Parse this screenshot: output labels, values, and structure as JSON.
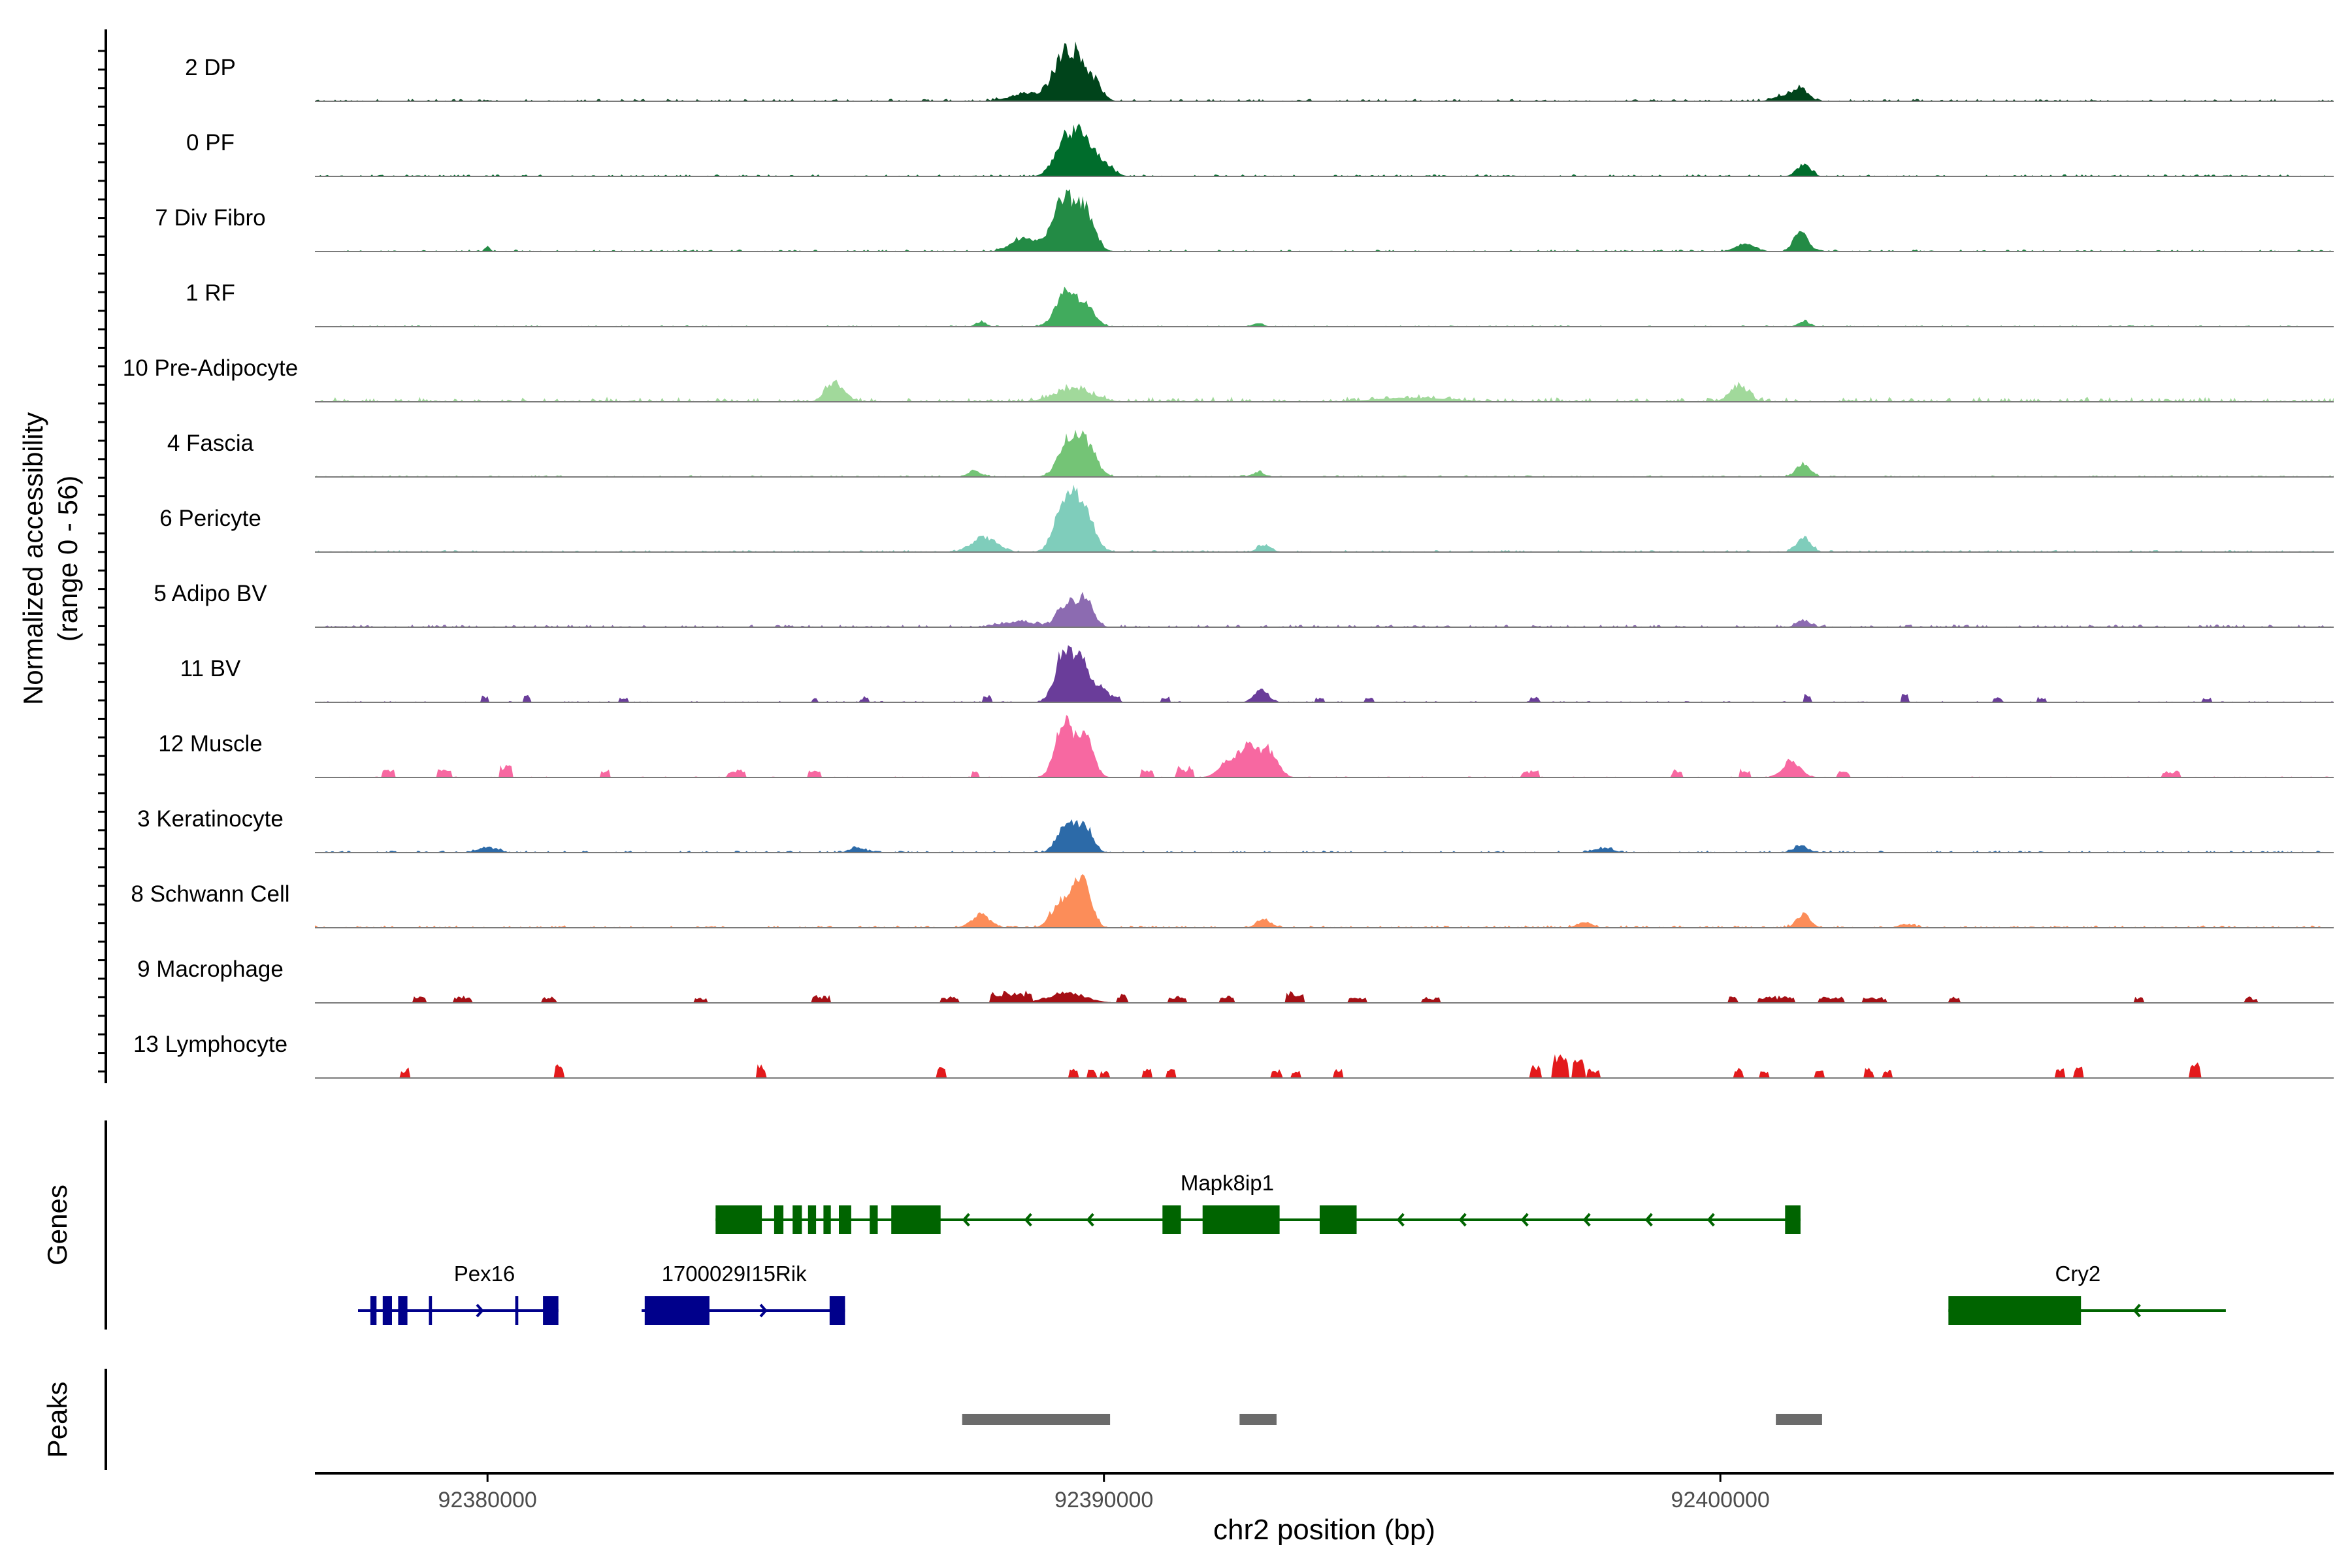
{
  "chart_data": {
    "type": "area",
    "title": "",
    "ylabel_line1": "Normalized accessibility",
    "ylabel_line2": "(range 0 - 56)",
    "y_range": [
      0,
      56
    ],
    "xlabel": "chr2 position (bp)",
    "xlim": [
      92377200,
      92409950
    ],
    "x_ticks": [
      92380000,
      92390000,
      92400000
    ],
    "x_tick_labels": [
      "92380000",
      "92390000",
      "92400000"
    ],
    "tracks": [
      {
        "name": "2 DP",
        "color": "#00441b",
        "peaks": [
          [
            92389350,
            0.62,
            170
          ],
          [
            92389600,
            0.45,
            140
          ],
          [
            92389850,
            0.25,
            130
          ],
          [
            92388800,
            0.12,
            300
          ],
          [
            92401300,
            0.2,
            120
          ],
          [
            92401000,
            0.08,
            150
          ]
        ],
        "blocks": [],
        "noise": 0.035
      },
      {
        "name": "0 PF",
        "color": "#006d2c",
        "peaks": [
          [
            92389400,
            0.62,
            180
          ],
          [
            92389700,
            0.45,
            140
          ],
          [
            92390000,
            0.18,
            150
          ],
          [
            92401350,
            0.18,
            110
          ]
        ],
        "blocks": [],
        "noise": 0.03
      },
      {
        "name": "7 Div Fibro",
        "color": "#238b45",
        "peaks": [
          [
            92389350,
            0.78,
            190
          ],
          [
            92389700,
            0.55,
            150
          ],
          [
            92388700,
            0.2,
            200
          ],
          [
            92401300,
            0.3,
            110
          ],
          [
            92400400,
            0.12,
            150
          ],
          [
            92380000,
            0.08,
            40
          ]
        ],
        "blocks": [],
        "noise": 0.03
      },
      {
        "name": "1 RF",
        "color": "#41ab5d",
        "peaks": [
          [
            92389400,
            0.55,
            170
          ],
          [
            92389750,
            0.25,
            130
          ],
          [
            92388000,
            0.08,
            80
          ],
          [
            92401350,
            0.08,
            90
          ],
          [
            92392500,
            0.05,
            90
          ]
        ],
        "blocks": [],
        "noise": 0.02
      },
      {
        "name": "10 Pre-Adipocyte",
        "color": "#a1d99b",
        "peaks": [
          [
            92385650,
            0.28,
            150
          ],
          [
            92389500,
            0.2,
            300
          ],
          [
            92400300,
            0.25,
            150
          ],
          [
            92395000,
            0.06,
            600
          ]
        ],
        "blocks": [],
        "noise": 0.07
      },
      {
        "name": "4 Fascia",
        "color": "#74c476",
        "peaks": [
          [
            92389450,
            0.58,
            170
          ],
          [
            92389750,
            0.42,
            140
          ],
          [
            92387900,
            0.1,
            100
          ],
          [
            92401350,
            0.2,
            110
          ],
          [
            92392500,
            0.07,
            100
          ]
        ],
        "blocks": [],
        "noise": 0.025
      },
      {
        "name": "6 Pericyte",
        "color": "#7fcdbb",
        "peaks": [
          [
            92389400,
            0.88,
            170
          ],
          [
            92389700,
            0.5,
            160
          ],
          [
            92388050,
            0.22,
            200
          ],
          [
            92401350,
            0.22,
            110
          ],
          [
            92392600,
            0.1,
            110
          ]
        ],
        "blocks": [],
        "noise": 0.03
      },
      {
        "name": "5 Adipo BV",
        "color": "#8c6bb1",
        "peaks": [
          [
            92389400,
            0.35,
            150
          ],
          [
            92389700,
            0.4,
            130
          ],
          [
            92388600,
            0.08,
            300
          ],
          [
            92401350,
            0.1,
            110
          ]
        ],
        "blocks": [],
        "noise": 0.04
      },
      {
        "name": "11 BV",
        "color": "#6a3d9a",
        "peaks": [
          [
            92389350,
            0.78,
            140
          ],
          [
            92389650,
            0.58,
            120
          ],
          [
            92389950,
            0.22,
            110
          ],
          [
            92392550,
            0.22,
            110
          ]
        ],
        "blocks": [
          [
            92379950,
            120,
            0.08
          ],
          [
            92380650,
            120,
            0.1
          ],
          [
            92382200,
            150,
            0.06
          ],
          [
            92385300,
            100,
            0.06
          ],
          [
            92386100,
            150,
            0.06
          ],
          [
            92388100,
            150,
            0.08
          ],
          [
            92390200,
            150,
            0.07
          ],
          [
            92391000,
            150,
            0.06
          ],
          [
            92393500,
            150,
            0.06
          ],
          [
            92394300,
            150,
            0.06
          ],
          [
            92397000,
            150,
            0.06
          ],
          [
            92401400,
            120,
            0.12
          ],
          [
            92403000,
            120,
            0.1
          ],
          [
            92404500,
            150,
            0.06
          ],
          [
            92405200,
            150,
            0.06
          ],
          [
            92407900,
            150,
            0.06
          ]
        ],
        "noise": 0.02
      },
      {
        "name": "12 Muscle",
        "color": "#f768a1",
        "peaks": [
          [
            92389350,
            0.82,
            140
          ],
          [
            92389700,
            0.62,
            130
          ],
          [
            92392350,
            0.48,
            150
          ],
          [
            92392700,
            0.4,
            130
          ],
          [
            92392000,
            0.22,
            150
          ],
          [
            92401150,
            0.25,
            140
          ]
        ],
        "blocks": [
          [
            92378400,
            200,
            0.1
          ],
          [
            92379300,
            250,
            0.12
          ],
          [
            92380300,
            200,
            0.18
          ],
          [
            92381900,
            150,
            0.1
          ],
          [
            92384050,
            300,
            0.1
          ],
          [
            92385300,
            200,
            0.08
          ],
          [
            92387900,
            120,
            0.08
          ],
          [
            92390700,
            200,
            0.1
          ],
          [
            92391300,
            300,
            0.12
          ],
          [
            92396900,
            300,
            0.08
          ],
          [
            92399300,
            200,
            0.08
          ],
          [
            92400400,
            200,
            0.08
          ],
          [
            92402000,
            200,
            0.08
          ],
          [
            92407300,
            300,
            0.07
          ]
        ],
        "noise": 0.015
      },
      {
        "name": "3 Keratinocyte",
        "color": "#2c6aa8",
        "peaks": [
          [
            92389400,
            0.48,
            140
          ],
          [
            92389700,
            0.38,
            120
          ],
          [
            92380000,
            0.08,
            150
          ],
          [
            92386000,
            0.07,
            120
          ],
          [
            92401300,
            0.1,
            120
          ],
          [
            92398100,
            0.07,
            150
          ]
        ],
        "blocks": [],
        "noise": 0.03
      },
      {
        "name": "8 Schwann Cell",
        "color": "#fc8d59",
        "peaks": [
          [
            92389650,
            0.85,
            130
          ],
          [
            92389300,
            0.4,
            150
          ],
          [
            92388000,
            0.2,
            150
          ],
          [
            92392600,
            0.12,
            120
          ],
          [
            92401350,
            0.2,
            110
          ],
          [
            92397800,
            0.08,
            120
          ],
          [
            92403000,
            0.06,
            100
          ]
        ],
        "blocks": [],
        "noise": 0.035
      },
      {
        "name": "9 Macrophage",
        "color": "#a50f15",
        "peaks": [
          [
            92389400,
            0.15,
            300
          ]
        ],
        "blocks": [
          [
            92378900,
            200,
            0.08
          ],
          [
            92379600,
            300,
            0.08
          ],
          [
            92381000,
            250,
            0.07
          ],
          [
            92383450,
            200,
            0.06
          ],
          [
            92385400,
            300,
            0.08
          ],
          [
            92387500,
            300,
            0.07
          ],
          [
            92388500,
            700,
            0.12
          ],
          [
            92390300,
            200,
            0.1
          ],
          [
            92391200,
            300,
            0.08
          ],
          [
            92392000,
            250,
            0.08
          ],
          [
            92393100,
            300,
            0.12
          ],
          [
            92394100,
            300,
            0.06
          ],
          [
            92395300,
            300,
            0.07
          ],
          [
            92400200,
            150,
            0.07
          ],
          [
            92400900,
            600,
            0.08
          ],
          [
            92401800,
            400,
            0.08
          ],
          [
            92402500,
            400,
            0.07
          ],
          [
            92403800,
            200,
            0.07
          ],
          [
            92406800,
            150,
            0.08
          ],
          [
            92408600,
            200,
            0.07
          ]
        ],
        "noise": 0.01
      },
      {
        "name": "13 Lymphocyte",
        "color": "#e31a1c",
        "peaks": [],
        "blocks": [
          [
            92378650,
            150,
            0.12
          ],
          [
            92381150,
            150,
            0.16
          ],
          [
            92384450,
            150,
            0.16
          ],
          [
            92387350,
            150,
            0.15
          ],
          [
            92389500,
            150,
            0.1
          ],
          [
            92389800,
            150,
            0.1
          ],
          [
            92390000,
            150,
            0.1
          ],
          [
            92390700,
            150,
            0.12
          ],
          [
            92391100,
            150,
            0.12
          ],
          [
            92392800,
            150,
            0.1
          ],
          [
            92393100,
            150,
            0.1
          ],
          [
            92393800,
            150,
            0.1
          ],
          [
            92397000,
            200,
            0.15
          ],
          [
            92397400,
            250,
            0.28
          ],
          [
            92397700,
            200,
            0.2
          ],
          [
            92397950,
            200,
            0.1
          ],
          [
            92400300,
            150,
            0.12
          ],
          [
            92400700,
            150,
            0.1
          ],
          [
            92401600,
            150,
            0.1
          ],
          [
            92402400,
            150,
            0.12
          ],
          [
            92402700,
            150,
            0.1
          ],
          [
            92405500,
            150,
            0.12
          ],
          [
            92405800,
            150,
            0.15
          ],
          [
            92407700,
            150,
            0.2
          ]
        ],
        "noise": 0.0
      }
    ],
    "genes_label": "Genes",
    "peaks_label": "Peaks",
    "genes": [
      {
        "name": "Mapk8ip1",
        "color": "#006400",
        "strand": "-",
        "row": 0,
        "start": 92383700,
        "end": 92401300,
        "exons": [
          [
            92383700,
            92384450
          ],
          [
            92384650,
            92384800
          ],
          [
            92384950,
            92385100
          ],
          [
            92385200,
            92385330
          ],
          [
            92385450,
            92385570
          ],
          [
            92385700,
            92385900
          ],
          [
            92386200,
            92386330
          ],
          [
            92386550,
            92387350
          ],
          [
            92390950,
            92391250
          ],
          [
            92391600,
            92392850
          ],
          [
            92393500,
            92394100
          ],
          [
            92401050,
            92401300
          ]
        ],
        "label_x": 92392000
      },
      {
        "name": "Pex16",
        "color": "#00008b",
        "strand": "+",
        "row": 1,
        "start": 92377900,
        "end": 92381150,
        "exons": [
          [
            92378100,
            92378200
          ],
          [
            92378300,
            92378450
          ],
          [
            92378550,
            92378700
          ],
          [
            92379050,
            92379100
          ],
          [
            92380450,
            92380500
          ],
          [
            92380900,
            92381150
          ]
        ],
        "label_x": 92379950
      },
      {
        "name": "1700029I15Rik",
        "color": "#00008b",
        "strand": "+",
        "row": 1,
        "start": 92382500,
        "end": 92385800,
        "exons": [
          [
            92382550,
            92383600
          ],
          [
            92385550,
            92385800
          ]
        ],
        "label_x": 92384000
      },
      {
        "name": "Cry2",
        "color": "#006400",
        "strand": "-",
        "row": 1,
        "start": 92403700,
        "end": 92408200,
        "exons": [
          [
            92403700,
            92405850
          ]
        ],
        "label_x": 92405800
      }
    ],
    "peak_regions": [
      [
        92387700,
        92390100
      ],
      [
        92392200,
        92392800
      ],
      [
        92400900,
        92401650
      ]
    ]
  }
}
